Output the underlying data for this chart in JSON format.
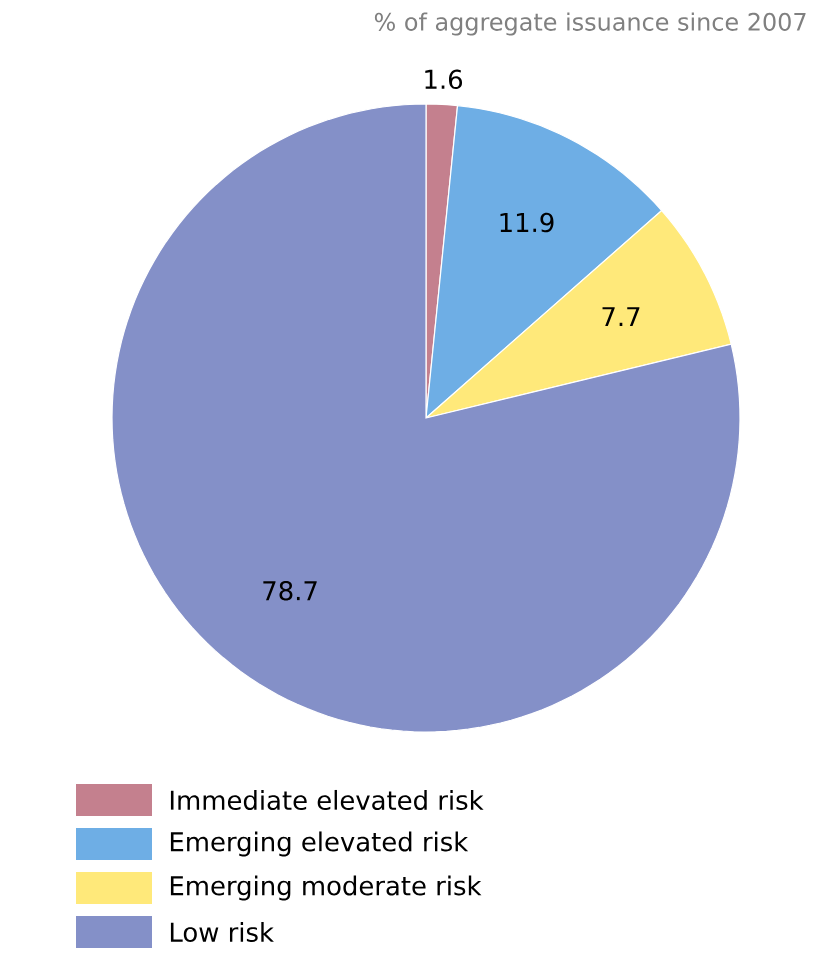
{
  "chart_data": {
    "type": "pie",
    "subtitle": "% of aggregate issuance since 2007",
    "categories": [
      "Immediate elevated risk",
      "Emerging elevated risk",
      "Emerging moderate risk",
      "Low risk"
    ],
    "values": [
      1.6,
      11.9,
      7.7,
      78.7
    ],
    "colors": [
      "#c4808e",
      "#6eaee5",
      "#ffe97a",
      "#8490c8"
    ],
    "data_labels": true,
    "legend": "bottom"
  }
}
